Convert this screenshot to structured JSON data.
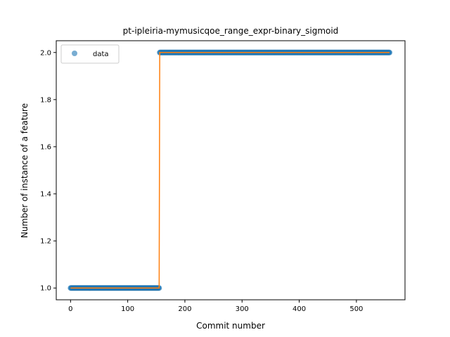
{
  "chart_data": {
    "type": "scatter",
    "title": "pt-ipleiria-mymusicqoe_range_expr-binary_sigmoid",
    "xlabel": "Commit number",
    "ylabel": "Number of instance of a feature",
    "xlim": [
      -25,
      585
    ],
    "ylim": [
      0.95,
      2.05
    ],
    "xticks": [
      0,
      100,
      200,
      300,
      400,
      500
    ],
    "yticks": [
      1.0,
      1.2,
      1.4,
      1.6,
      1.8,
      2.0
    ],
    "ytick_labels": [
      "1.0",
      "1.2",
      "1.4",
      "1.6",
      "1.8",
      "2.0"
    ],
    "legend": {
      "placement": "upper-left",
      "entries": [
        "data"
      ]
    },
    "grid": false,
    "series": [
      {
        "name": "data",
        "kind": "points",
        "color": "#1f77b4",
        "segments": [
          {
            "x_start": 0,
            "x_end": 155,
            "y": 1.0
          },
          {
            "x_start": 156,
            "x_end": 558,
            "y": 2.0
          }
        ]
      },
      {
        "kind": "line",
        "color": "#ff7f0e",
        "x": [
          0,
          155,
          156,
          558
        ],
        "y": [
          1.0,
          1.0,
          2.0,
          2.0
        ]
      }
    ]
  }
}
